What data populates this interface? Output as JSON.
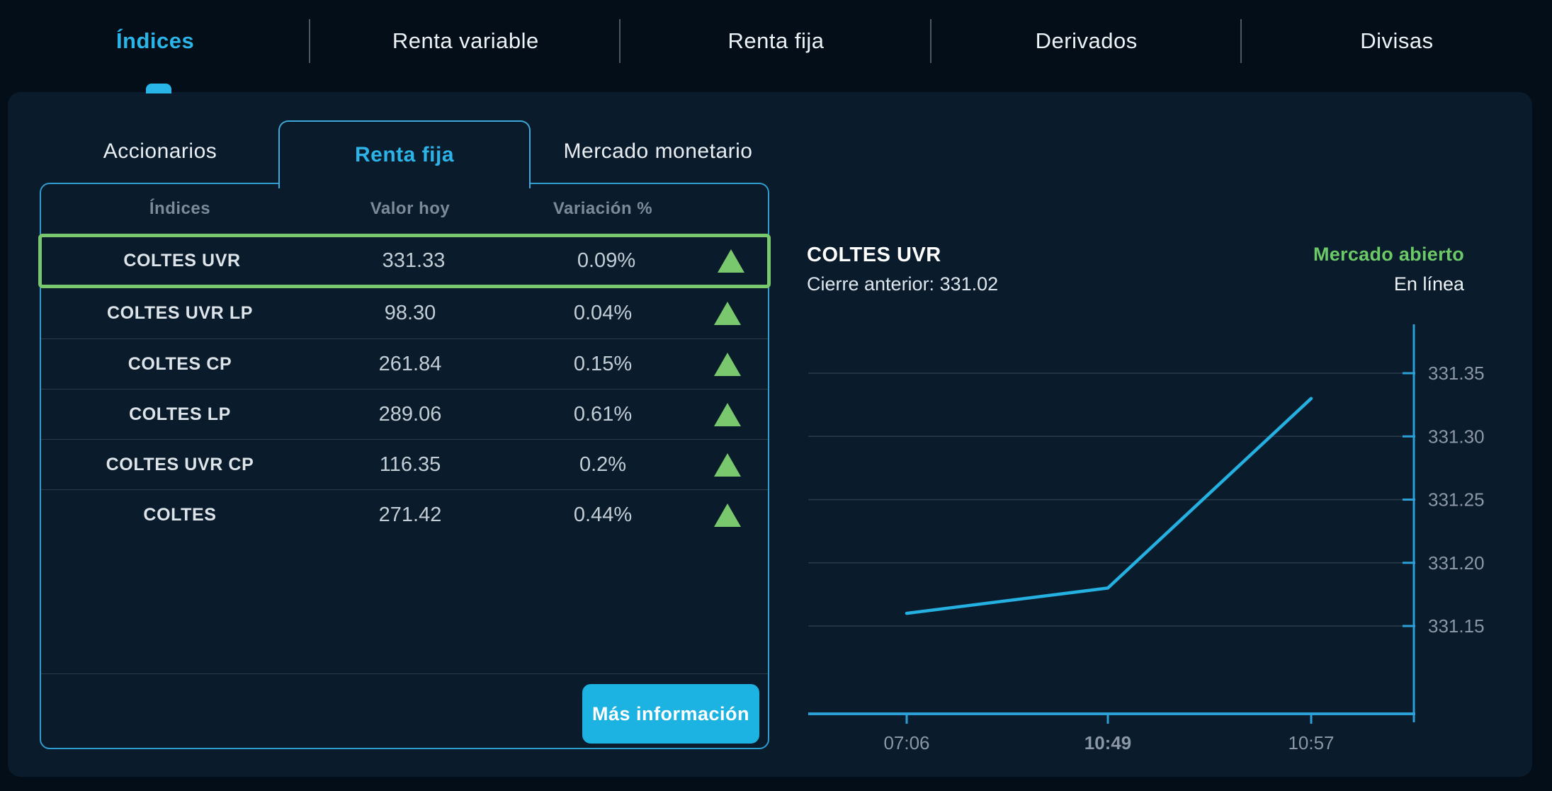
{
  "nav": {
    "items": [
      {
        "label": "Índices",
        "active": true
      },
      {
        "label": "Renta variable",
        "active": false
      },
      {
        "label": "Renta fija",
        "active": false
      },
      {
        "label": "Derivados",
        "active": false
      },
      {
        "label": "Divisas",
        "active": false
      }
    ]
  },
  "panel": {
    "tabs": [
      {
        "label": "Accionarios",
        "active": false
      },
      {
        "label": "Renta fija",
        "active": true
      },
      {
        "label": "Mercado monetario",
        "active": false
      }
    ],
    "table": {
      "columns": [
        "Índices",
        "Valor hoy",
        "Variación %"
      ],
      "rows": [
        {
          "name": "COLTES UVR",
          "value": "331.33",
          "change": "0.09%",
          "direction": "up",
          "highlighted": true
        },
        {
          "name": "COLTES UVR LP",
          "value": "98.30",
          "change": "0.04%",
          "direction": "up",
          "highlighted": false
        },
        {
          "name": "COLTES CP",
          "value": "261.84",
          "change": "0.15%",
          "direction": "up",
          "highlighted": false
        },
        {
          "name": "COLTES LP",
          "value": "289.06",
          "change": "0.61%",
          "direction": "up",
          "highlighted": false
        },
        {
          "name": "COLTES UVR CP",
          "value": "116.35",
          "change": "0.2%",
          "direction": "up",
          "highlighted": false
        },
        {
          "name": "COLTES",
          "value": "271.42",
          "change": "0.44%",
          "direction": "up",
          "highlighted": false
        }
      ],
      "more_info_label": "Más información"
    }
  },
  "detail": {
    "title": "COLTES UVR",
    "previous_close_label": "Cierre anterior:",
    "previous_close_value": "331.02",
    "market_status": "Mercado abierto",
    "connection_status": "En línea"
  },
  "chart_data": {
    "type": "line",
    "title": "COLTES UVR intraday",
    "x": [
      "07:06",
      "10:49",
      "10:57"
    ],
    "values": [
      331.16,
      331.18,
      331.33
    ],
    "y_ticks": [
      331.15,
      331.2,
      331.25,
      331.3,
      331.35
    ],
    "ylim": [
      331.13,
      331.38
    ],
    "bold_x_label": "10:49",
    "previous_close": 331.02,
    "line_color": "#25b0e2",
    "axis_color": "#2b9fd6",
    "grid": true,
    "legend": "none"
  },
  "colors": {
    "accent_cyan": "#29b5e8",
    "positive_green": "#79c86d",
    "button_cyan": "#1cb2e2",
    "panel_bg": "#0a1b2b",
    "page_bg": "#040e18"
  }
}
